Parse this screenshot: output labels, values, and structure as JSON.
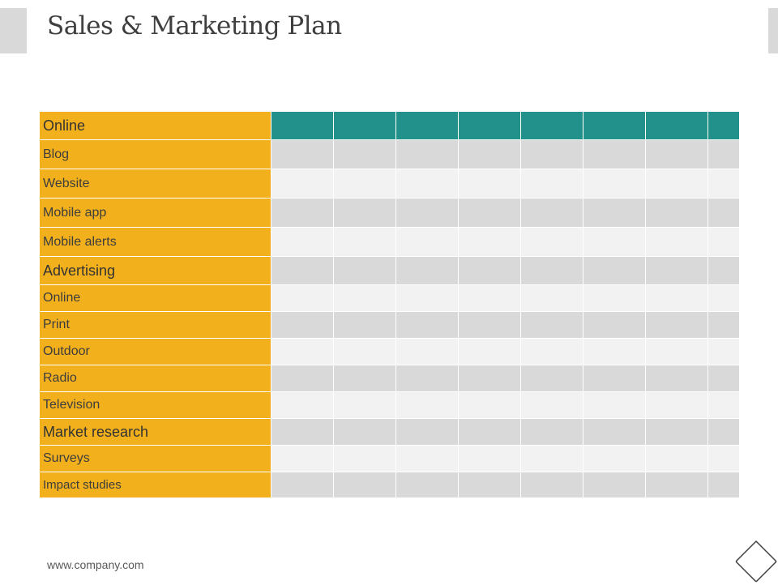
{
  "slide": {
    "title": "Sales & Marketing Plan",
    "footer_url": "www.company.com"
  },
  "table": {
    "empty_columns": 8,
    "rows": [
      {
        "label": "Online",
        "kind": "header"
      },
      {
        "label": "Blog",
        "kind": "item"
      },
      {
        "label": "Website",
        "kind": "item"
      },
      {
        "label": "Mobile app",
        "kind": "item"
      },
      {
        "label": "Mobile alerts",
        "kind": "item"
      },
      {
        "label": "Advertising",
        "kind": "header"
      },
      {
        "label": "Online",
        "kind": "item"
      },
      {
        "label": "Print",
        "kind": "item"
      },
      {
        "label": "Outdoor",
        "kind": "item"
      },
      {
        "label": "Radio",
        "kind": "item"
      },
      {
        "label": "Television",
        "kind": "item"
      },
      {
        "label": "Market research",
        "kind": "header"
      },
      {
        "label": "Surveys",
        "kind": "item"
      },
      {
        "label": "Impact studies",
        "kind": "item-small"
      }
    ]
  },
  "colors": {
    "label_fill": "#f2b01c",
    "header_fill": "#22908b",
    "grid_dark": "#d9d9d9",
    "grid_light": "#f2f2f2"
  },
  "icons": {
    "corner_mark": "diamond-outline-icon"
  }
}
